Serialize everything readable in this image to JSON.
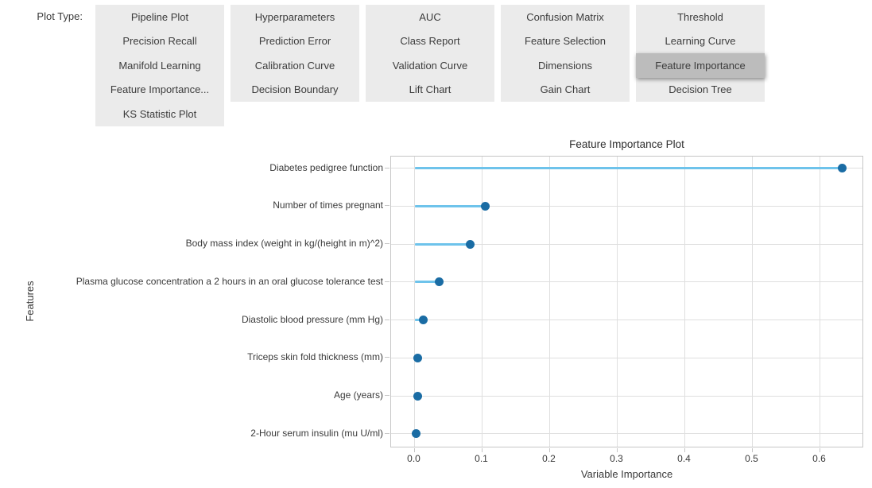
{
  "plot_type": {
    "label": "Plot Type:",
    "selected": "Feature Importance",
    "selected_index": 14,
    "options": [
      "Pipeline Plot",
      "Hyperparameters",
      "AUC",
      "Confusion Matrix",
      "Threshold",
      "Precision Recall",
      "Prediction Error",
      "Class Report",
      "Feature Selection",
      "Learning Curve",
      "Manifold Learning",
      "Calibration Curve",
      "Validation Curve",
      "Dimensions",
      "Feature Importance",
      "Feature Importance...",
      "Decision Boundary",
      "Lift Chart",
      "Gain Chart",
      "Decision Tree",
      "KS Statistic Plot"
    ]
  },
  "chart_data": {
    "type": "scatter",
    "style": "lollipop",
    "title": "Feature Importance Plot",
    "xlabel": "Variable Importance",
    "ylabel": "Features",
    "categories": [
      "Diabetes pedigree function",
      "Number of times pregnant",
      "Body mass index (weight in kg/(height in m)^2)",
      "Plasma glucose concentration a 2 hours in an oral glucose tolerance test",
      "Diastolic blood pressure (mm Hg)",
      "Triceps skin fold thickness (mm)",
      "Age (years)",
      "2-Hour serum insulin (mu U/ml)"
    ],
    "values": [
      0.633,
      0.105,
      0.082,
      0.036,
      0.013,
      0.005,
      0.005,
      0.002
    ],
    "xlim": [
      -0.035,
      0.665
    ],
    "xticks": [
      0.0,
      0.1,
      0.2,
      0.3,
      0.4,
      0.5,
      0.6
    ],
    "xtick_labels": [
      "0.0",
      "0.1",
      "0.2",
      "0.3",
      "0.4",
      "0.5",
      "0.6"
    ],
    "grid": true,
    "legend": false,
    "colors": {
      "stem": "#6ec3eb",
      "point": "#1a6ca4"
    }
  },
  "colors": {
    "page_background": "#ffffff",
    "button_background": "#ebebeb",
    "button_selected_background": "#bcbcbc",
    "button_text": "#3c3c3c",
    "grid_line": "#dfdfdf",
    "plot_border": "#c6c6c6"
  }
}
